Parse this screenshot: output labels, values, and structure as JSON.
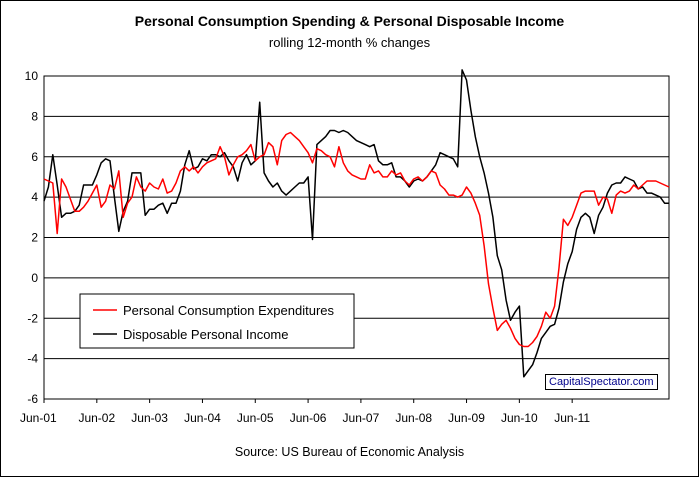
{
  "chart_data": {
    "type": "line",
    "title": "Personal Consumption Spending & Personal Disposable Income",
    "subtitle": "rolling 12-month % changes",
    "source": "Source: US Bureau of Economic Analysis",
    "watermark": "CapitalSpectator.com",
    "xlabel": "",
    "ylabel": "",
    "ylim": [
      -6,
      10
    ],
    "yticks": [
      "10",
      "8",
      "6",
      "4",
      "2",
      "0",
      "-2",
      "-4",
      "-6"
    ],
    "x_tick_labels": [
      "Jun-01",
      "Jun-02",
      "Jun-03",
      "Jun-04",
      "Jun-05",
      "Jun-06",
      "Jun-07",
      "Jun-08",
      "Jun-09",
      "Jun-10",
      "Jun-11"
    ],
    "grid": "horizontal",
    "legend": "lower-left",
    "series": [
      {
        "name": "Personal Consumption Expenditures",
        "color": "#ff0000",
        "values": [
          4.9,
          4.8,
          4.7,
          2.2,
          4.9,
          4.5,
          3.9,
          3.3,
          3.3,
          3.5,
          3.8,
          4.2,
          4.6,
          3.5,
          3.8,
          4.6,
          4.4,
          5.3,
          3.0,
          3.7,
          4.0,
          5.0,
          4.5,
          4.3,
          4.7,
          4.5,
          4.4,
          4.9,
          4.2,
          4.3,
          4.7,
          5.3,
          5.5,
          5.3,
          5.5,
          5.2,
          5.5,
          5.7,
          5.8,
          5.9,
          6.5,
          6.0,
          5.1,
          5.6,
          6.0,
          6.1,
          6.3,
          6.6,
          5.8,
          6.0,
          6.1,
          6.7,
          6.5,
          5.6,
          6.8,
          7.1,
          7.2,
          7.0,
          6.8,
          6.5,
          6.2,
          5.7,
          6.4,
          6.3,
          6.1,
          6.0,
          5.5,
          6.5,
          5.7,
          5.3,
          5.1,
          5.0,
          4.9,
          4.9,
          5.6,
          5.2,
          5.3,
          5.0,
          5.0,
          5.3,
          5.1,
          5.2,
          4.8,
          4.6,
          4.9,
          5.0,
          4.8,
          5.0,
          5.3,
          5.2,
          4.6,
          4.4,
          4.1,
          4.1,
          4.0,
          4.1,
          4.5,
          4.2,
          3.7,
          3.1,
          1.6,
          -0.3,
          -1.5,
          -2.6,
          -2.3,
          -2.1,
          -2.5,
          -3.0,
          -3.3,
          -3.4,
          -3.4,
          -3.2,
          -2.9,
          -2.4,
          -1.7,
          -2.0,
          -1.4,
          0.5,
          2.9,
          2.6,
          3.0,
          3.6,
          4.2,
          4.3,
          4.3,
          4.3,
          3.6,
          4.0,
          3.9,
          3.2,
          4.1,
          4.3,
          4.2,
          4.3,
          4.6,
          4.4,
          4.6,
          4.8,
          4.8,
          4.8,
          4.7,
          4.6,
          4.5
        ]
      },
      {
        "name": "Disposable Personal Income",
        "color": "#000000",
        "values": [
          3.8,
          4.5,
          6.1,
          4.6,
          3.0,
          3.2,
          3.2,
          3.3,
          3.6,
          4.6,
          4.6,
          4.6,
          5.1,
          5.7,
          5.9,
          5.8,
          4.0,
          2.3,
          3.3,
          3.8,
          5.2,
          5.2,
          5.2,
          3.1,
          3.4,
          3.4,
          3.6,
          3.7,
          3.2,
          3.7,
          3.7,
          4.3,
          5.6,
          6.3,
          5.4,
          5.5,
          5.9,
          5.8,
          6.1,
          6.1,
          6.0,
          6.2,
          5.8,
          5.5,
          4.8,
          5.7,
          6.1,
          5.6,
          5.8,
          8.7,
          5.2,
          4.8,
          4.5,
          4.7,
          4.3,
          4.1,
          4.3,
          4.5,
          4.7,
          4.7,
          5.0,
          1.9,
          6.6,
          6.8,
          7.0,
          7.3,
          7.3,
          7.2,
          7.3,
          7.2,
          7.0,
          6.8,
          6.7,
          6.6,
          6.5,
          6.6,
          5.8,
          5.6,
          5.6,
          5.7,
          5.0,
          5.0,
          4.8,
          4.5,
          4.8,
          4.9,
          4.8,
          5.0,
          5.3,
          5.6,
          6.2,
          6.1,
          6.0,
          5.9,
          5.5,
          10.3,
          9.8,
          8.3,
          7.0,
          6.0,
          5.2,
          4.2,
          3.0,
          1.1,
          0.4,
          -1.1,
          -2.1,
          -1.7,
          -1.4,
          -4.9,
          -4.6,
          -4.3,
          -3.7,
          -3.0,
          -2.7,
          -2.4,
          -2.3,
          -1.5,
          -0.2,
          0.7,
          1.3,
          2.4,
          3.0,
          3.2,
          3.0,
          2.2,
          3.1,
          3.5,
          4.2,
          4.6,
          4.7,
          4.7,
          5.0,
          4.9,
          4.8,
          4.4,
          4.5,
          4.2,
          4.2,
          4.1,
          4.0,
          3.7,
          3.7
        ]
      }
    ]
  }
}
